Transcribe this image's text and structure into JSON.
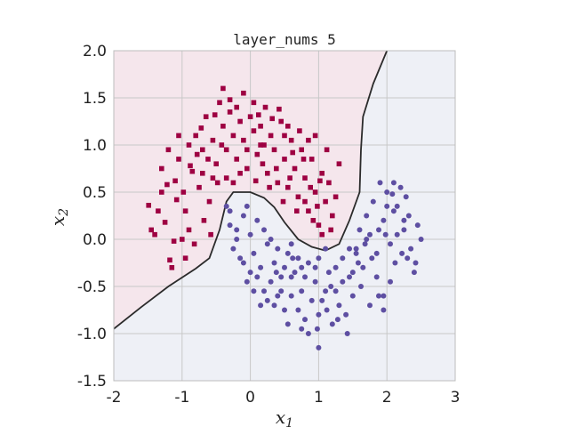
{
  "chart_data": {
    "type": "scatter",
    "title": "layer_nums 5",
    "xlabel": "x",
    "xlabel_sub": "1",
    "ylabel": "x",
    "ylabel_sub": "2",
    "xlim": [
      -2,
      3
    ],
    "ylim": [
      -1.5,
      2.0
    ],
    "xticks": [
      -2,
      -1,
      0,
      1,
      2,
      3
    ],
    "xtick_labels": [
      "-2",
      "-1",
      "0",
      "1",
      "2",
      "3"
    ],
    "yticks": [
      -1.5,
      -1.0,
      -0.5,
      0.0,
      0.5,
      1.0,
      1.5,
      2.0
    ],
    "ytick_labels": [
      "-1.5",
      "-1.0",
      "-0.5",
      "0.0",
      "0.5",
      "1.0",
      "1.5",
      "2.0"
    ],
    "grid": true,
    "colors": {
      "class0": "#9e0142",
      "class1": "#5e4fa2",
      "region0": "#f5e6ec",
      "region1": "#eef0f6",
      "boundary": "#2b2b2b",
      "grid": "#c8c8c8",
      "frame": "#bdbdbd"
    },
    "decision_boundary": [
      [
        -2.0,
        -0.95
      ],
      [
        -1.6,
        -0.72
      ],
      [
        -1.2,
        -0.5
      ],
      [
        -0.8,
        -0.31
      ],
      [
        -0.6,
        -0.2
      ],
      [
        -0.45,
        0.1
      ],
      [
        -0.35,
        0.4
      ],
      [
        -0.25,
        0.5
      ],
      [
        0.0,
        0.5
      ],
      [
        0.2,
        0.44
      ],
      [
        0.35,
        0.34
      ],
      [
        0.5,
        0.18
      ],
      [
        0.7,
        0.0
      ],
      [
        0.9,
        -0.08
      ],
      [
        1.1,
        -0.12
      ],
      [
        1.3,
        -0.05
      ],
      [
        1.45,
        0.2
      ],
      [
        1.6,
        0.5
      ],
      [
        1.62,
        0.95
      ],
      [
        1.65,
        1.3
      ],
      [
        1.8,
        1.65
      ],
      [
        2.0,
        2.0
      ]
    ],
    "series": [
      {
        "marker": "square",
        "color": "#9e0142",
        "points": [
          [
            -1.49,
            0.36
          ],
          [
            -1.3,
            0.5
          ],
          [
            -1.1,
            0.62
          ],
          [
            -1.25,
            0.18
          ],
          [
            -1.4,
            0.05
          ],
          [
            -1.05,
            0.85
          ],
          [
            -0.95,
            0.3
          ],
          [
            -0.85,
            0.72
          ],
          [
            -0.8,
            1.1
          ],
          [
            -0.7,
            0.95
          ],
          [
            -0.65,
            1.3
          ],
          [
            -0.55,
            1.05
          ],
          [
            -0.5,
            0.8
          ],
          [
            -0.45,
            1.45
          ],
          [
            -0.4,
            1.2
          ],
          [
            -0.35,
            0.95
          ],
          [
            -0.3,
            1.35
          ],
          [
            -0.25,
            1.1
          ],
          [
            -0.2,
            0.85
          ],
          [
            -0.15,
            1.25
          ],
          [
            -0.1,
            1.05
          ],
          [
            -0.05,
            0.75
          ],
          [
            0.0,
            1.3
          ],
          [
            0.05,
            1.15
          ],
          [
            0.1,
            0.9
          ],
          [
            0.15,
            1.2
          ],
          [
            0.2,
            1.0
          ],
          [
            0.25,
            0.7
          ],
          [
            0.3,
            1.1
          ],
          [
            0.35,
            0.95
          ],
          [
            0.4,
            0.6
          ],
          [
            0.45,
            1.25
          ],
          [
            0.5,
            0.85
          ],
          [
            0.55,
            0.55
          ],
          [
            0.6,
            1.05
          ],
          [
            0.65,
            0.75
          ],
          [
            0.7,
            0.45
          ],
          [
            0.75,
            0.95
          ],
          [
            0.8,
            0.65
          ],
          [
            0.85,
            0.3
          ],
          [
            0.9,
            0.85
          ],
          [
            0.95,
            0.5
          ],
          [
            1.0,
            0.15
          ],
          [
            1.05,
            0.7
          ],
          [
            1.1,
            0.4
          ],
          [
            1.15,
            0.6
          ],
          [
            1.2,
            0.25
          ],
          [
            1.25,
            0.45
          ],
          [
            -1.05,
            1.1
          ],
          [
            -0.9,
            1.0
          ],
          [
            -0.75,
            0.55
          ],
          [
            -0.6,
            0.4
          ],
          [
            -0.48,
            0.6
          ],
          [
            -0.9,
            0.1
          ],
          [
            -0.82,
            -0.05
          ],
          [
            -1.12,
            -0.02
          ],
          [
            -1.18,
            -0.22
          ],
          [
            -1.15,
            -0.3
          ],
          [
            -0.68,
            0.2
          ],
          [
            -0.58,
            0.05
          ],
          [
            -0.4,
            1.6
          ],
          [
            -0.3,
            1.48
          ],
          [
            -0.1,
            1.55
          ],
          [
            0.05,
            1.45
          ],
          [
            0.22,
            1.4
          ],
          [
            0.42,
            1.38
          ],
          [
            0.55,
            1.2
          ],
          [
            0.72,
            1.15
          ],
          [
            0.85,
            1.05
          ],
          [
            -0.7,
            0.7
          ],
          [
            -0.62,
            0.85
          ],
          [
            -0.2,
            1.4
          ],
          [
            0.12,
            1.32
          ],
          [
            0.32,
            1.28
          ],
          [
            0.62,
            0.92
          ],
          [
            0.8,
            0.4
          ],
          [
            0.92,
            0.2
          ],
          [
            1.05,
            0.05
          ],
          [
            1.18,
            0.1
          ],
          [
            0.98,
            0.35
          ],
          [
            0.88,
            0.55
          ],
          [
            0.68,
            0.3
          ],
          [
            0.48,
            0.4
          ],
          [
            -0.15,
            0.7
          ],
          [
            -0.35,
            0.65
          ],
          [
            -1.3,
            0.75
          ],
          [
            -1.2,
            0.95
          ],
          [
            -0.98,
            0.5
          ],
          [
            -0.78,
            0.9
          ],
          [
            -0.42,
            1.0
          ],
          [
            0.18,
            0.8
          ],
          [
            0.38,
            0.75
          ],
          [
            0.58,
            0.65
          ],
          [
            -0.05,
            0.95
          ],
          [
            0.28,
            0.55
          ],
          [
            1.3,
            0.8
          ],
          [
            1.12,
            0.95
          ],
          [
            0.95,
            1.1
          ],
          [
            -1.35,
            0.3
          ],
          [
            -1.45,
            0.1
          ],
          [
            -0.95,
            -0.2
          ],
          [
            -1.0,
            0.0
          ],
          [
            -0.55,
            0.65
          ],
          [
            -0.25,
            0.6
          ],
          [
            0.08,
            0.62
          ],
          [
            0.15,
            1.0
          ],
          [
            -0.72,
            1.18
          ],
          [
            -0.88,
            0.78
          ],
          [
            -1.08,
            0.42
          ],
          [
            -1.22,
            0.58
          ],
          [
            -0.52,
            1.32
          ],
          [
            0.5,
            1.1
          ],
          [
            0.78,
            0.85
          ],
          [
            1.02,
            0.62
          ]
        ]
      },
      {
        "marker": "circle",
        "color": "#5e4fa2",
        "points": [
          [
            -0.3,
            0.3
          ],
          [
            -0.2,
            0.1
          ],
          [
            -0.1,
            0.25
          ],
          [
            0.0,
            0.05
          ],
          [
            0.1,
            0.2
          ],
          [
            -0.25,
            -0.1
          ],
          [
            -0.15,
            -0.2
          ],
          [
            0.05,
            -0.15
          ],
          [
            0.15,
            -0.3
          ],
          [
            0.25,
            -0.05
          ],
          [
            0.35,
            -0.25
          ],
          [
            0.45,
            -0.4
          ],
          [
            0.55,
            -0.15
          ],
          [
            0.65,
            -0.35
          ],
          [
            0.75,
            -0.55
          ],
          [
            0.85,
            -0.25
          ],
          [
            0.95,
            -0.45
          ],
          [
            1.05,
            -0.65
          ],
          [
            1.15,
            -0.35
          ],
          [
            1.25,
            -0.55
          ],
          [
            1.35,
            -0.2
          ],
          [
            1.45,
            -0.4
          ],
          [
            1.55,
            -0.1
          ],
          [
            1.65,
            -0.3
          ],
          [
            1.75,
            0.05
          ],
          [
            1.85,
            -0.15
          ],
          [
            1.95,
            0.2
          ],
          [
            2.05,
            -0.05
          ],
          [
            2.15,
            0.35
          ],
          [
            2.25,
            0.1
          ],
          [
            2.35,
            -0.1
          ],
          [
            2.45,
            0.15
          ],
          [
            1.8,
            0.4
          ],
          [
            1.9,
            0.6
          ],
          [
            2.0,
            0.5
          ],
          [
            2.1,
            0.3
          ],
          [
            2.2,
            0.55
          ],
          [
            1.7,
            0.25
          ],
          [
            1.6,
            0.1
          ],
          [
            2.3,
            -0.2
          ],
          [
            2.4,
            -0.35
          ],
          [
            2.05,
            -0.45
          ],
          [
            1.95,
            -0.6
          ],
          [
            1.85,
            -0.4
          ],
          [
            1.75,
            -0.7
          ],
          [
            1.5,
            -0.6
          ],
          [
            1.4,
            -0.8
          ],
          [
            1.3,
            -0.7
          ],
          [
            1.2,
            -0.9
          ],
          [
            1.1,
            -0.55
          ],
          [
            1.0,
            -0.8
          ],
          [
            0.9,
            -0.65
          ],
          [
            0.8,
            -0.85
          ],
          [
            0.7,
            -0.75
          ],
          [
            0.6,
            -0.6
          ],
          [
            0.5,
            -0.75
          ],
          [
            0.4,
            -0.6
          ],
          [
            0.3,
            -0.45
          ],
          [
            0.2,
            -0.55
          ],
          [
            0.1,
            -0.4
          ],
          [
            0.0,
            -0.35
          ],
          [
            -0.1,
            -0.25
          ],
          [
            -0.2,
            0.0
          ],
          [
            -0.3,
            0.15
          ],
          [
            -0.35,
            0.35
          ],
          [
            -0.05,
            0.35
          ],
          [
            0.2,
            0.1
          ],
          [
            0.3,
            0.0
          ],
          [
            0.4,
            -0.1
          ],
          [
            0.6,
            -0.05
          ],
          [
            0.7,
            -0.2
          ],
          [
            1.0,
            -0.2
          ],
          [
            1.1,
            -0.1
          ],
          [
            1.5,
            -0.35
          ],
          [
            1.62,
            -0.5
          ],
          [
            2.12,
            -0.25
          ],
          [
            2.22,
            -0.15
          ],
          [
            2.32,
            0.25
          ],
          [
            2.5,
            0.0
          ],
          [
            2.42,
            -0.25
          ],
          [
            2.28,
            0.45
          ],
          [
            2.15,
            0.05
          ],
          [
            2.08,
            0.48
          ],
          [
            1.98,
            0.05
          ],
          [
            1.88,
            0.1
          ],
          [
            1.78,
            -0.2
          ],
          [
            1.68,
            -0.05
          ],
          [
            1.58,
            -0.25
          ],
          [
            1.35,
            -0.45
          ],
          [
            1.25,
            -0.3
          ],
          [
            1.12,
            -0.75
          ],
          [
            0.98,
            -0.95
          ],
          [
            0.85,
            -1.0
          ],
          [
            0.75,
            -0.95
          ],
          [
            0.55,
            -0.9
          ],
          [
            0.45,
            -0.55
          ],
          [
            0.35,
            -0.7
          ],
          [
            0.25,
            -0.65
          ],
          [
            0.15,
            -0.7
          ],
          [
            0.05,
            -0.55
          ],
          [
            -0.05,
            -0.45
          ],
          [
            0.6,
            -0.4
          ],
          [
            0.8,
            -0.4
          ],
          [
            1.0,
            -1.15
          ],
          [
            1.42,
            -1.0
          ],
          [
            1.88,
            -0.6
          ],
          [
            1.95,
            -0.75
          ],
          [
            2.0,
            0.35
          ],
          [
            2.1,
            0.6
          ],
          [
            2.25,
            0.2
          ],
          [
            1.7,
            0.0
          ],
          [
            1.55,
            -0.15
          ],
          [
            1.45,
            -0.1
          ],
          [
            0.5,
            -0.3
          ],
          [
            0.95,
            -0.3
          ],
          [
            0.75,
            -0.3
          ],
          [
            0.62,
            -0.2
          ],
          [
            1.18,
            -0.5
          ],
          [
            1.28,
            -0.85
          ],
          [
            0.38,
            -0.35
          ]
        ]
      }
    ]
  }
}
